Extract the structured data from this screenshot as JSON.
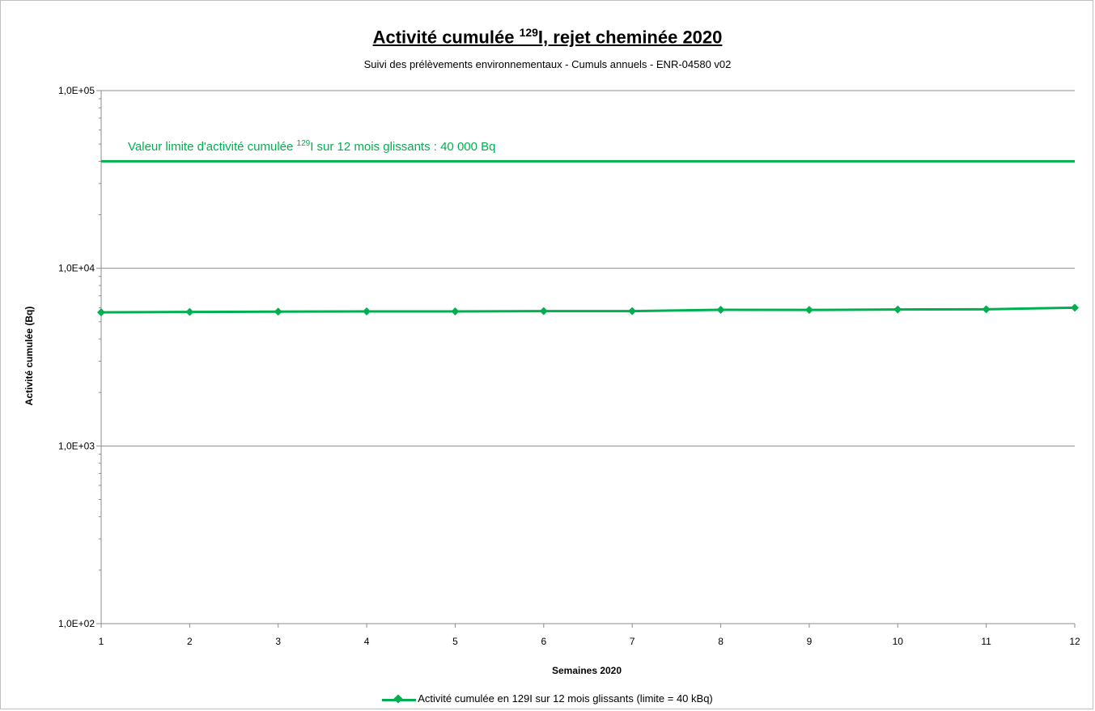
{
  "chart_data": {
    "type": "line",
    "title": {
      "prefix": "Activité cumulée ",
      "superscript": "129",
      "suffix": "I, rejet cheminée 2020"
    },
    "subtitle": "Suivi des prélèvements environnementaux - Cumuls annuels - ENR-04580 v02",
    "xlabel": "Semaines 2020",
    "ylabel": "Activité cumulée (Bq)",
    "x": [
      1,
      2,
      3,
      4,
      5,
      6,
      7,
      8,
      9,
      10,
      11,
      12
    ],
    "x_tick_labels": [
      "1",
      "2",
      "3",
      "4",
      "5",
      "6",
      "7",
      "8",
      "9",
      "10",
      "11",
      "12"
    ],
    "xlim": [
      1,
      12
    ],
    "ylim": [
      100,
      100000
    ],
    "y_scale": "log",
    "y_tick_values": [
      100,
      1000,
      10000,
      100000
    ],
    "y_tick_labels": [
      "1,0E+02",
      "1,0E+03",
      "1,0E+04",
      "1,0E+05"
    ],
    "grid": "horizontal",
    "series": [
      {
        "name": "Activité cumulée en 129I sur 12 mois glissants (limite = 40 kBq)",
        "color": "#00b050",
        "values": [
          5650,
          5680,
          5700,
          5720,
          5720,
          5740,
          5740,
          5840,
          5830,
          5860,
          5880,
          6000
        ]
      }
    ],
    "limit_line": {
      "value": 40000,
      "color": "#00b050",
      "label": {
        "prefix": "Valeur limite d'activité cumulée ",
        "superscript": "129",
        "suffix": "I sur 12 mois  glissants : 40 000 Bq"
      }
    },
    "legend_placement": "bottom"
  }
}
